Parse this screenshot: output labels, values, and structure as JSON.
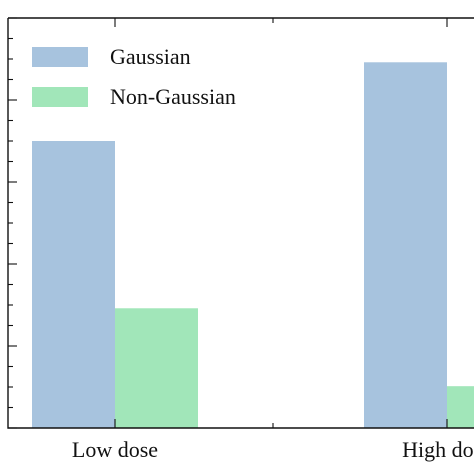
{
  "chart_data": {
    "type": "bar",
    "categories": [
      "Low dose",
      "High dose"
    ],
    "series": [
      {
        "name": "Gaussian",
        "color": "#a7c3de",
        "values": [
          3.5,
          4.46
        ]
      },
      {
        "name": "Non-Gaussian",
        "color": "#a1e6b9",
        "values": [
          1.46,
          0.51
        ]
      }
    ],
    "ylim": [
      0,
      5
    ],
    "yticks": [
      0,
      1,
      2,
      3,
      4,
      5
    ],
    "legend": "upper left"
  }
}
